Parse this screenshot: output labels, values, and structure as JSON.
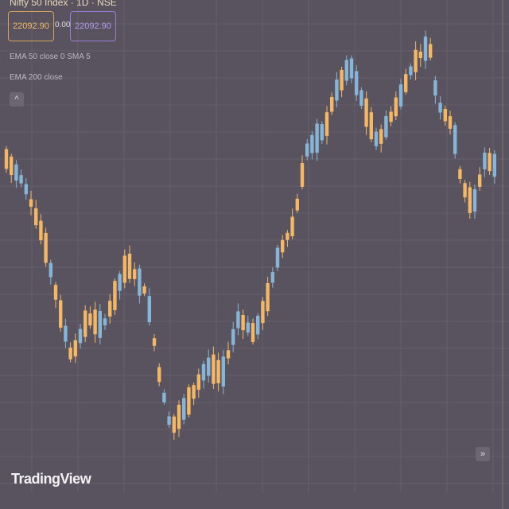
{
  "header": {
    "symbol": "Nifty 50 Index · 1D · NSE"
  },
  "legend": {
    "sell": "22092.90",
    "spread": "0.00",
    "buy": "22092.90"
  },
  "indicators": [
    "EMA 50 close 0 SMA 5",
    "EMA 200 close"
  ],
  "logo": "TradingView"
}
